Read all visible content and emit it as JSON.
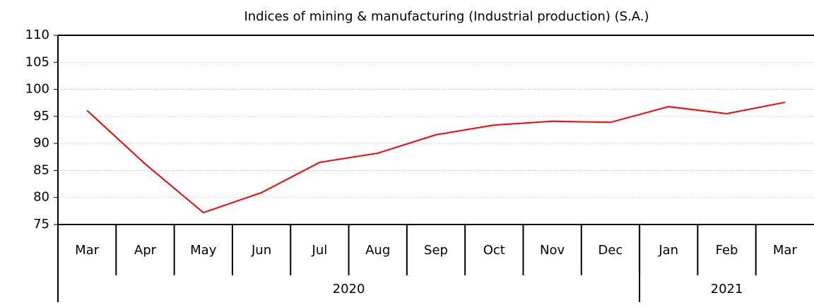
{
  "chart_data": {
    "type": "line",
    "title": "Indices of mining & manufacturing (Industrial production)  (S.A.)",
    "categories": [
      "Mar",
      "Apr",
      "May",
      "Jun",
      "Jul",
      "Aug",
      "Sep",
      "Oct",
      "Nov",
      "Dec",
      "Jan",
      "Feb",
      "Mar"
    ],
    "year_groups": [
      {
        "label": "2020",
        "count": 10
      },
      {
        "label": "2021",
        "count": 3
      }
    ],
    "series": [
      {
        "name": "Industrial production",
        "color": "#ff0000",
        "values": [
          96.1,
          86.2,
          77.2,
          80.9,
          86.5,
          88.2,
          91.6,
          93.4,
          94.1,
          93.9,
          96.8,
          95.5,
          97.6
        ]
      }
    ],
    "ylim": [
      75,
      110
    ],
    "yticks": [
      75,
      80,
      85,
      90,
      95,
      100,
      105,
      110
    ],
    "grid": true
  }
}
